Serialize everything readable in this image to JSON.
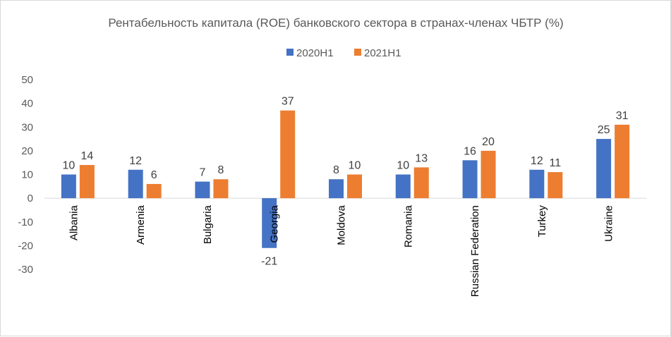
{
  "chart_data": {
    "type": "bar",
    "title": "Рентабельность капитала (ROE) банковского сектора в странах-членах ЧБТР (%)",
    "xlabel": "",
    "ylabel": "",
    "ylim": [
      -30,
      50
    ],
    "yticks": [
      50,
      40,
      30,
      20,
      10,
      0,
      -10,
      -20,
      -30
    ],
    "grid": false,
    "legend_position": "top",
    "categories": [
      "Albania",
      "Armenia",
      "Bulgaria",
      "Georgia",
      "Moldova",
      "Romania",
      "Russian Federation",
      "Turkey",
      "Ukraine"
    ],
    "series": [
      {
        "name": "2020H1",
        "color": "#4472c4",
        "values": [
          10,
          12,
          7,
          -21,
          8,
          10,
          16,
          12,
          25
        ]
      },
      {
        "name": "2021H1",
        "color": "#ed7d31",
        "values": [
          14,
          6,
          8,
          37,
          10,
          13,
          20,
          11,
          31
        ]
      }
    ]
  }
}
